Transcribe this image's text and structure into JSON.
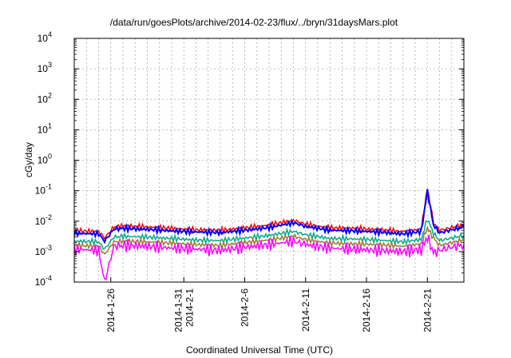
{
  "chart_data": {
    "type": "line",
    "title": "/data/run/goesPlots/archive/2014-02-23/flux/../bryn/31daysMars.plot",
    "xlabel": "Coordinated Universal Time (UTC)",
    "ylabel": "cGy/day",
    "y_scale": "log",
    "ylim": [
      0.0001,
      10000
    ],
    "xlim": [
      "2014-01-23",
      "2014-02-24"
    ],
    "grid": true,
    "legend": "none",
    "y_ticks": [
      {
        "base": "10",
        "exp": "-4"
      },
      {
        "base": "10",
        "exp": "-3"
      },
      {
        "base": "10",
        "exp": "-2"
      },
      {
        "base": "10",
        "exp": "-1"
      },
      {
        "base": "10",
        "exp": "0"
      },
      {
        "base": "10",
        "exp": "1"
      },
      {
        "base": "10",
        "exp": "2"
      },
      {
        "base": "10",
        "exp": "3"
      },
      {
        "base": "10",
        "exp": "4"
      }
    ],
    "x_ticks": [
      {
        "date": "2014-01-26",
        "lines": [
          "2014-1-26"
        ]
      },
      {
        "date": "2014-02-01",
        "lines": [
          "2014-1-31",
          "2014-2-1"
        ]
      },
      {
        "date": "2014-02-06",
        "lines": [
          "2014-2-6"
        ]
      },
      {
        "date": "2014-02-11",
        "lines": [
          "2014-2-11"
        ]
      },
      {
        "date": "2014-02-16",
        "lines": [
          "2014-2-16"
        ]
      },
      {
        "date": "2014-02-21",
        "lines": [
          "2014-2-21"
        ]
      }
    ],
    "series": [
      {
        "color": "#ff0000",
        "x": [
          "2014-01-23",
          "2014-01-25",
          "2014-01-25T12",
          "2014-01-26T06",
          "2014-01-27",
          "2014-01-29",
          "2014-01-31",
          "2014-02-02",
          "2014-02-04",
          "2014-02-06",
          "2014-02-08",
          "2014-02-10",
          "2014-02-11",
          "2014-02-13",
          "2014-02-15",
          "2014-02-17",
          "2014-02-19",
          "2014-02-20T12",
          "2014-02-21T00",
          "2014-02-21T12",
          "2014-02-22",
          "2014-02-23",
          "2014-02-24"
        ],
        "y": [
          0.0048,
          0.0046,
          0.0028,
          0.0065,
          0.007,
          0.0065,
          0.0058,
          0.0052,
          0.005,
          0.006,
          0.0075,
          0.0105,
          0.008,
          0.006,
          0.0058,
          0.0052,
          0.0046,
          0.0055,
          0.12,
          0.009,
          0.005,
          0.0062,
          0.0075
        ]
      },
      {
        "color": "#0000ff",
        "x": [
          "2014-01-23",
          "2014-01-25",
          "2014-01-25T12",
          "2014-01-26T06",
          "2014-01-27",
          "2014-01-29",
          "2014-01-31",
          "2014-02-02",
          "2014-02-04",
          "2014-02-06",
          "2014-02-08",
          "2014-02-10",
          "2014-02-11",
          "2014-02-13",
          "2014-02-15",
          "2014-02-17",
          "2014-02-19",
          "2014-02-20T12",
          "2014-02-21T00",
          "2014-02-21T12",
          "2014-02-22",
          "2014-02-23",
          "2014-02-24"
        ],
        "y": [
          0.004,
          0.0038,
          0.0022,
          0.0055,
          0.0058,
          0.0054,
          0.0048,
          0.0044,
          0.0042,
          0.005,
          0.0062,
          0.0088,
          0.0068,
          0.005,
          0.0048,
          0.0044,
          0.0038,
          0.0046,
          0.095,
          0.0075,
          0.0041,
          0.0052,
          0.0064
        ]
      },
      {
        "color": "#00aa88",
        "x": [
          "2014-01-23",
          "2014-01-25",
          "2014-01-25T12",
          "2014-01-26T06",
          "2014-01-27",
          "2014-01-29",
          "2014-01-31",
          "2014-02-02",
          "2014-02-04",
          "2014-02-06",
          "2014-02-08",
          "2014-02-10",
          "2014-02-11",
          "2014-02-13",
          "2014-02-15",
          "2014-02-17",
          "2014-02-19",
          "2014-02-20T12",
          "2014-02-21T00",
          "2014-02-21T12",
          "2014-02-22",
          "2014-02-23",
          "2014-02-24"
        ],
        "y": [
          0.0022,
          0.0021,
          0.0012,
          0.003,
          0.0032,
          0.003,
          0.0027,
          0.0024,
          0.0023,
          0.0028,
          0.0034,
          0.0046,
          0.0036,
          0.0027,
          0.0026,
          0.0024,
          0.0021,
          0.0025,
          0.012,
          0.004,
          0.0023,
          0.0028,
          0.0034
        ]
      },
      {
        "color": "#9a7a30",
        "x": [
          "2014-01-23",
          "2014-01-25",
          "2014-01-25T12",
          "2014-01-26T06",
          "2014-01-27",
          "2014-01-29",
          "2014-01-31",
          "2014-02-02",
          "2014-02-04",
          "2014-02-06",
          "2014-02-08",
          "2014-02-10",
          "2014-02-11",
          "2014-02-13",
          "2014-02-15",
          "2014-02-17",
          "2014-02-19",
          "2014-02-20T12",
          "2014-02-21T00",
          "2014-02-21T12",
          "2014-02-22",
          "2014-02-23",
          "2014-02-24"
        ],
        "y": [
          0.0016,
          0.0015,
          0.0008,
          0.0021,
          0.0022,
          0.0021,
          0.0019,
          0.0017,
          0.0016,
          0.002,
          0.0024,
          0.0032,
          0.0025,
          0.0019,
          0.0018,
          0.0017,
          0.0015,
          0.0018,
          0.006,
          0.0028,
          0.0016,
          0.002,
          0.0024
        ]
      },
      {
        "color": "#ff00ff",
        "x": [
          "2014-01-23",
          "2014-01-25",
          "2014-01-25T12",
          "2014-01-26T06",
          "2014-01-27",
          "2014-01-29",
          "2014-01-31",
          "2014-02-02",
          "2014-02-04",
          "2014-02-06",
          "2014-02-08",
          "2014-02-10",
          "2014-02-11",
          "2014-02-13",
          "2014-02-15",
          "2014-02-17",
          "2014-02-19",
          "2014-02-20T12",
          "2014-02-21T00",
          "2014-02-21T12",
          "2014-02-22",
          "2014-02-23",
          "2014-02-24"
        ],
        "y": [
          0.0012,
          0.0011,
          0.0001,
          0.0015,
          0.0016,
          0.0015,
          0.0013,
          0.0012,
          0.0011,
          0.0014,
          0.0017,
          0.0022,
          0.0017,
          0.0013,
          0.0012,
          0.0011,
          0.001,
          0.0012,
          0.003,
          0.0009,
          0.0011,
          0.0014,
          0.0017
        ]
      }
    ]
  }
}
